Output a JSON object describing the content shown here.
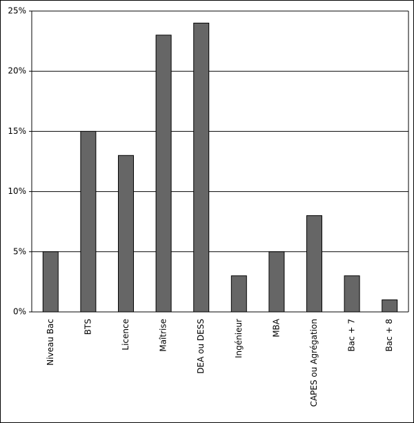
{
  "chart_data": {
    "type": "bar",
    "categories": [
      "Niveau Bac",
      "BTS",
      "Licence",
      "Maîtrise",
      "DEA ou DESS",
      "Ingénieur",
      "MBA",
      "CAPES ou Agrégation",
      "Bac + 7",
      "Bac + 8"
    ],
    "values": [
      5,
      15,
      13,
      23,
      24,
      3,
      5,
      8,
      3,
      1
    ],
    "color": "#666666",
    "ylim": [
      0,
      25
    ],
    "yticks": [
      {
        "value": 0,
        "label": "0%"
      },
      {
        "value": 5,
        "label": "5%"
      },
      {
        "value": 10,
        "label": "10%"
      },
      {
        "value": 15,
        "label": "15%"
      },
      {
        "value": 20,
        "label": "20%"
      },
      {
        "value": 25,
        "label": "25%"
      }
    ],
    "grid": true
  }
}
